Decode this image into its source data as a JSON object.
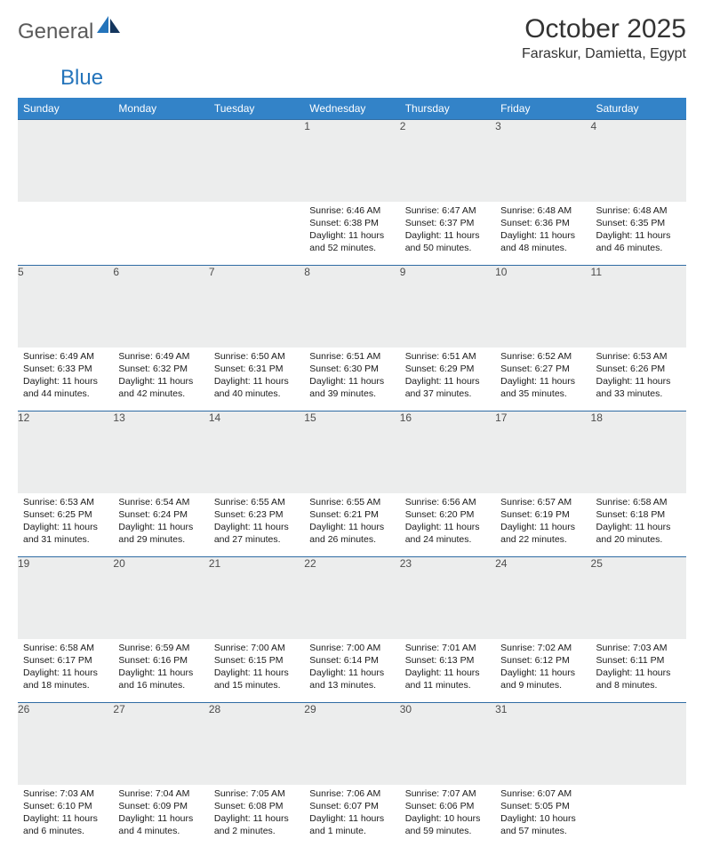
{
  "brand": {
    "general": "General",
    "blue": "Blue"
  },
  "title": "October 2025",
  "location": "Faraskur, Damietta, Egypt",
  "colors": {
    "header_bg": "#3383c8",
    "header_text": "#ffffff",
    "daynum_bg": "#eceded",
    "rule": "#2f6ca3",
    "brand_gray": "#5a5a5a",
    "brand_blue": "#2474bb"
  },
  "day_headers": [
    "Sunday",
    "Monday",
    "Tuesday",
    "Wednesday",
    "Thursday",
    "Friday",
    "Saturday"
  ],
  "weeks": [
    [
      null,
      null,
      null,
      {
        "n": "1",
        "sr": "6:46 AM",
        "ss": "6:38 PM",
        "dl": "11 hours and 52 minutes."
      },
      {
        "n": "2",
        "sr": "6:47 AM",
        "ss": "6:37 PM",
        "dl": "11 hours and 50 minutes."
      },
      {
        "n": "3",
        "sr": "6:48 AM",
        "ss": "6:36 PM",
        "dl": "11 hours and 48 minutes."
      },
      {
        "n": "4",
        "sr": "6:48 AM",
        "ss": "6:35 PM",
        "dl": "11 hours and 46 minutes."
      }
    ],
    [
      {
        "n": "5",
        "sr": "6:49 AM",
        "ss": "6:33 PM",
        "dl": "11 hours and 44 minutes."
      },
      {
        "n": "6",
        "sr": "6:49 AM",
        "ss": "6:32 PM",
        "dl": "11 hours and 42 minutes."
      },
      {
        "n": "7",
        "sr": "6:50 AM",
        "ss": "6:31 PM",
        "dl": "11 hours and 40 minutes."
      },
      {
        "n": "8",
        "sr": "6:51 AM",
        "ss": "6:30 PM",
        "dl": "11 hours and 39 minutes."
      },
      {
        "n": "9",
        "sr": "6:51 AM",
        "ss": "6:29 PM",
        "dl": "11 hours and 37 minutes."
      },
      {
        "n": "10",
        "sr": "6:52 AM",
        "ss": "6:27 PM",
        "dl": "11 hours and 35 minutes."
      },
      {
        "n": "11",
        "sr": "6:53 AM",
        "ss": "6:26 PM",
        "dl": "11 hours and 33 minutes."
      }
    ],
    [
      {
        "n": "12",
        "sr": "6:53 AM",
        "ss": "6:25 PM",
        "dl": "11 hours and 31 minutes."
      },
      {
        "n": "13",
        "sr": "6:54 AM",
        "ss": "6:24 PM",
        "dl": "11 hours and 29 minutes."
      },
      {
        "n": "14",
        "sr": "6:55 AM",
        "ss": "6:23 PM",
        "dl": "11 hours and 27 minutes."
      },
      {
        "n": "15",
        "sr": "6:55 AM",
        "ss": "6:21 PM",
        "dl": "11 hours and 26 minutes."
      },
      {
        "n": "16",
        "sr": "6:56 AM",
        "ss": "6:20 PM",
        "dl": "11 hours and 24 minutes."
      },
      {
        "n": "17",
        "sr": "6:57 AM",
        "ss": "6:19 PM",
        "dl": "11 hours and 22 minutes."
      },
      {
        "n": "18",
        "sr": "6:58 AM",
        "ss": "6:18 PM",
        "dl": "11 hours and 20 minutes."
      }
    ],
    [
      {
        "n": "19",
        "sr": "6:58 AM",
        "ss": "6:17 PM",
        "dl": "11 hours and 18 minutes."
      },
      {
        "n": "20",
        "sr": "6:59 AM",
        "ss": "6:16 PM",
        "dl": "11 hours and 16 minutes."
      },
      {
        "n": "21",
        "sr": "7:00 AM",
        "ss": "6:15 PM",
        "dl": "11 hours and 15 minutes."
      },
      {
        "n": "22",
        "sr": "7:00 AM",
        "ss": "6:14 PM",
        "dl": "11 hours and 13 minutes."
      },
      {
        "n": "23",
        "sr": "7:01 AM",
        "ss": "6:13 PM",
        "dl": "11 hours and 11 minutes."
      },
      {
        "n": "24",
        "sr": "7:02 AM",
        "ss": "6:12 PM",
        "dl": "11 hours and 9 minutes."
      },
      {
        "n": "25",
        "sr": "7:03 AM",
        "ss": "6:11 PM",
        "dl": "11 hours and 8 minutes."
      }
    ],
    [
      {
        "n": "26",
        "sr": "7:03 AM",
        "ss": "6:10 PM",
        "dl": "11 hours and 6 minutes."
      },
      {
        "n": "27",
        "sr": "7:04 AM",
        "ss": "6:09 PM",
        "dl": "11 hours and 4 minutes."
      },
      {
        "n": "28",
        "sr": "7:05 AM",
        "ss": "6:08 PM",
        "dl": "11 hours and 2 minutes."
      },
      {
        "n": "29",
        "sr": "7:06 AM",
        "ss": "6:07 PM",
        "dl": "11 hours and 1 minute."
      },
      {
        "n": "30",
        "sr": "7:07 AM",
        "ss": "6:06 PM",
        "dl": "10 hours and 59 minutes."
      },
      {
        "n": "31",
        "sr": "6:07 AM",
        "ss": "5:05 PM",
        "dl": "10 hours and 57 minutes."
      },
      null
    ]
  ],
  "labels": {
    "sunrise": "Sunrise:",
    "sunset": "Sunset:",
    "daylight": "Daylight:"
  }
}
